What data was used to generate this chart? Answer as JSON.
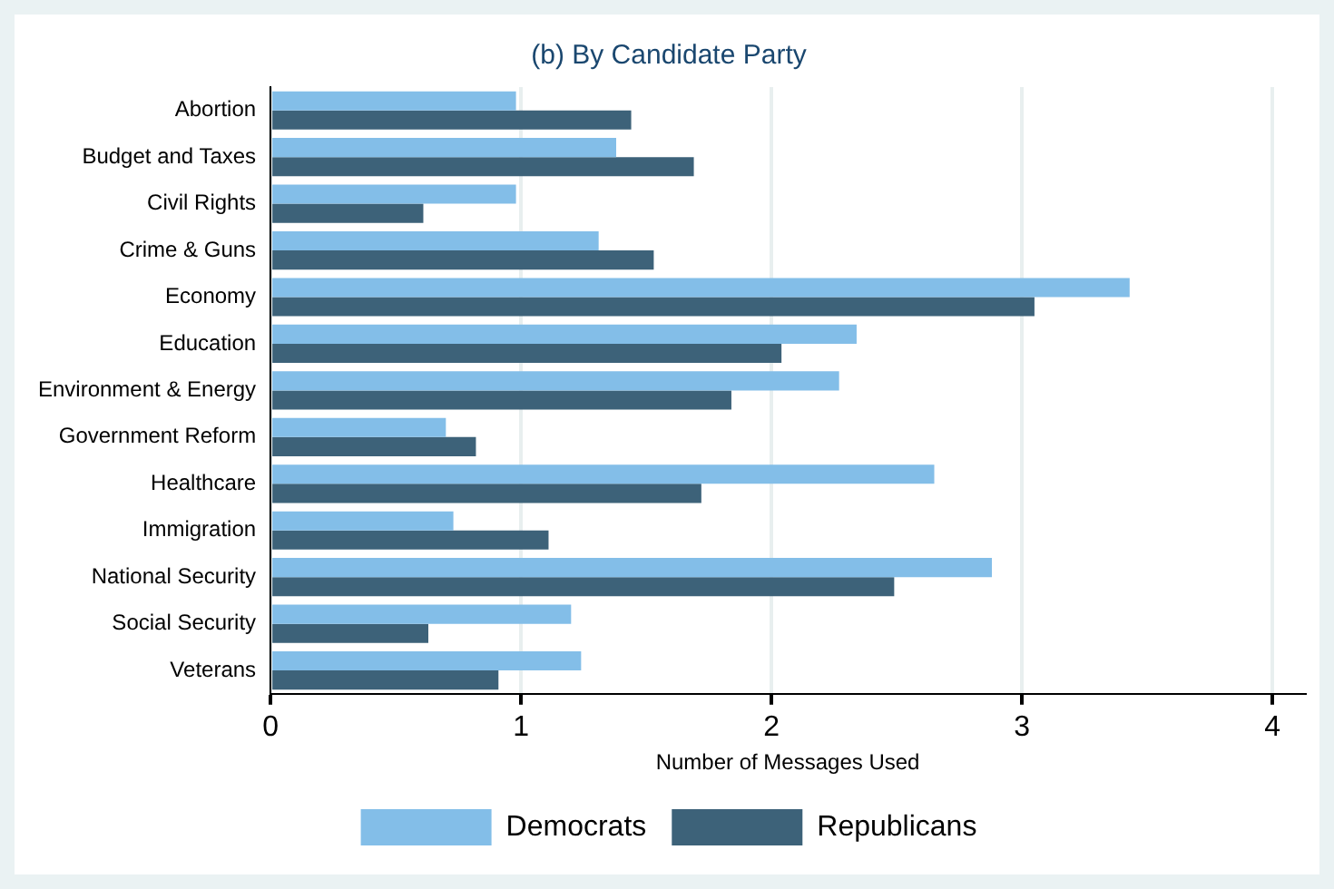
{
  "chart_data": {
    "type": "bar",
    "orientation": "horizontal",
    "title": "(b) By Candidate Party",
    "xlabel": "Number of Messages Used",
    "categories": [
      "Abortion",
      "Budget and Taxes",
      "Civil Rights",
      "Crime & Guns",
      "Economy",
      "Education",
      "Environment & Energy",
      "Government Reform",
      "Healthcare",
      "Immigration",
      "National Security",
      "Social Security",
      "Veterans"
    ],
    "series": [
      {
        "name": "Democrats",
        "color": "#83bee8",
        "values": [
          0.98,
          1.38,
          0.98,
          1.31,
          3.43,
          2.34,
          2.27,
          0.7,
          2.65,
          0.73,
          2.88,
          1.2,
          1.24
        ]
      },
      {
        "name": "Republicans",
        "color": "#3d6279",
        "values": [
          1.44,
          1.69,
          0.61,
          1.53,
          3.05,
          2.04,
          1.84,
          0.82,
          1.72,
          1.11,
          2.49,
          0.63,
          0.91
        ]
      }
    ],
    "xlim": [
      0,
      4.13
    ],
    "xticks": [
      0,
      1,
      2,
      3,
      4
    ],
    "grid": "x",
    "legend": "bottom"
  }
}
